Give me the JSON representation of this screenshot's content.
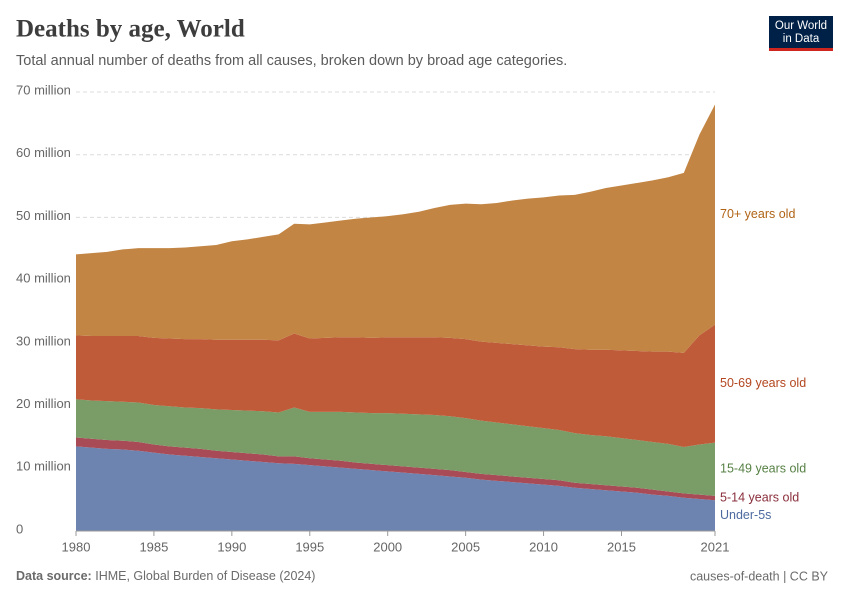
{
  "chart_data": {
    "type": "stacked-area",
    "title": "Deaths by age, World",
    "subtitle": "Total annual number of deaths from all causes, broken down by broad age categories.",
    "source_label": "Data source:",
    "source": "IHME, Global Burden of Disease (2024)",
    "credit": "causes-of-death | CC BY",
    "logo": [
      "Our World",
      "in Data"
    ],
    "x": [
      1980,
      1981,
      1982,
      1983,
      1984,
      1985,
      1986,
      1987,
      1988,
      1989,
      1990,
      1991,
      1992,
      1993,
      1994,
      1995,
      1996,
      1997,
      1998,
      1999,
      2000,
      2001,
      2002,
      2003,
      2004,
      2005,
      2006,
      2007,
      2008,
      2009,
      2010,
      2011,
      2012,
      2013,
      2014,
      2015,
      2016,
      2017,
      2018,
      2019,
      2020,
      2021
    ],
    "xlim": [
      1980,
      2021
    ],
    "xticks": [
      1980,
      1985,
      1990,
      1995,
      2000,
      2005,
      2010,
      2015,
      2021
    ],
    "ylim": [
      0,
      70000000
    ],
    "yticks": [
      0,
      {
        "value": 10000000,
        "label": "10 million"
      },
      {
        "value": 20000000,
        "label": "20 million"
      },
      {
        "value": 30000000,
        "label": "30 million"
      },
      {
        "value": 40000000,
        "label": "40 million"
      },
      {
        "value": 50000000,
        "label": "50 million"
      },
      {
        "value": 60000000,
        "label": "60 million"
      },
      {
        "value": 70000000,
        "label": "70 million"
      }
    ],
    "grid": true,
    "series": [
      {
        "name": "Under-5s",
        "color": "#6d84b0",
        "label_color": "#4d6aa0",
        "values": [
          13500000,
          13300000,
          13100000,
          13000000,
          12800000,
          12500000,
          12200000,
          12000000,
          11800000,
          11600000,
          11400000,
          11200000,
          11000000,
          10800000,
          10700000,
          10500000,
          10300000,
          10100000,
          9900000,
          9700000,
          9500000,
          9300000,
          9100000,
          8900000,
          8700000,
          8500000,
          8200000,
          8000000,
          7800000,
          7600000,
          7400000,
          7200000,
          6900000,
          6700000,
          6500000,
          6300000,
          6100000,
          5800000,
          5600000,
          5300000,
          5100000,
          4900000
        ]
      },
      {
        "name": "5-14 years old",
        "color": "#a84b57",
        "label_color": "#8a2f3c",
        "values": [
          1400000,
          1400000,
          1400000,
          1400000,
          1400000,
          1300000,
          1300000,
          1300000,
          1300000,
          1200000,
          1200000,
          1200000,
          1200000,
          1100000,
          1200000,
          1100000,
          1100000,
          1100000,
          1000000,
          1000000,
          1000000,
          1000000,
          1000000,
          1000000,
          1000000,
          900000,
          900000,
          900000,
          900000,
          900000,
          900000,
          900000,
          800000,
          800000,
          800000,
          800000,
          800000,
          800000,
          700000,
          700000,
          700000,
          700000
        ]
      },
      {
        "name": "15-49 years old",
        "color": "#7a9c66",
        "label_color": "#578145",
        "values": [
          6100000,
          6100000,
          6200000,
          6200000,
          6300000,
          6300000,
          6400000,
          6400000,
          6500000,
          6600000,
          6700000,
          6800000,
          6900000,
          7000000,
          7800000,
          7400000,
          7600000,
          7800000,
          8000000,
          8100000,
          8300000,
          8400000,
          8500000,
          8600000,
          8600000,
          8600000,
          8500000,
          8400000,
          8300000,
          8200000,
          8100000,
          8000000,
          7900000,
          7800000,
          7800000,
          7700000,
          7600000,
          7600000,
          7600000,
          7400000,
          8000000,
          8500000
        ]
      },
      {
        "name": "50-69 years old",
        "color": "#c05b3a",
        "label_color": "#b34720",
        "values": [
          10200000,
          10300000,
          10400000,
          10500000,
          10600000,
          10700000,
          10800000,
          10900000,
          11000000,
          11100000,
          11200000,
          11300000,
          11400000,
          11500000,
          11800000,
          11700000,
          11800000,
          11900000,
          12000000,
          12000000,
          12100000,
          12200000,
          12300000,
          12400000,
          12500000,
          12600000,
          12600000,
          12700000,
          12800000,
          12900000,
          13000000,
          13200000,
          13400000,
          13600000,
          13800000,
          14000000,
          14200000,
          14400000,
          14700000,
          15000000,
          17400000,
          18800000
        ]
      },
      {
        "name": "70+ years old",
        "color": "#c28544",
        "label_color": "#b06416",
        "values": [
          12900000,
          13200000,
          13400000,
          13800000,
          14000000,
          14300000,
          14400000,
          14600000,
          14800000,
          15100000,
          15700000,
          16000000,
          16400000,
          16900000,
          17500000,
          18200000,
          18400000,
          18600000,
          18900000,
          19200000,
          19300000,
          19600000,
          20000000,
          20600000,
          21200000,
          21600000,
          21900000,
          22300000,
          22900000,
          23400000,
          23800000,
          24200000,
          24600000,
          25200000,
          25800000,
          26300000,
          26800000,
          27300000,
          27800000,
          28700000,
          32000000,
          35100000
        ]
      }
    ]
  }
}
